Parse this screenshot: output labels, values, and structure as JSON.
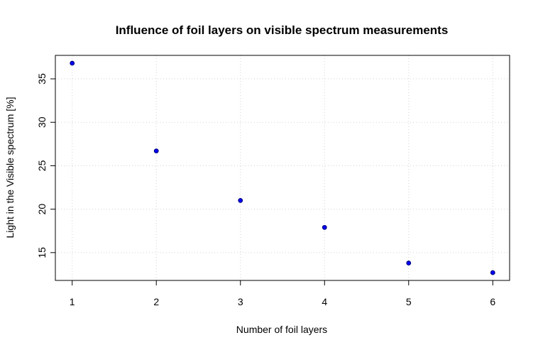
{
  "chart_data": {
    "type": "scatter",
    "title": "Influence of foil layers on visible spectrum measurements",
    "xlabel": "Number of foil layers",
    "ylabel": "Light in the Visible spectrum [%]",
    "x": [
      1,
      2,
      3,
      4,
      5,
      6
    ],
    "y": [
      36.8,
      26.7,
      21.0,
      17.9,
      13.8,
      12.7
    ],
    "xlim": [
      0.8,
      6.2
    ],
    "ylim": [
      11.8,
      37.7
    ],
    "xticks": [
      1,
      2,
      3,
      4,
      5,
      6
    ],
    "yticks": [
      15,
      20,
      25,
      30,
      35
    ],
    "grid": true,
    "point_fill": "#0000ff",
    "point_stroke": "#000080"
  }
}
